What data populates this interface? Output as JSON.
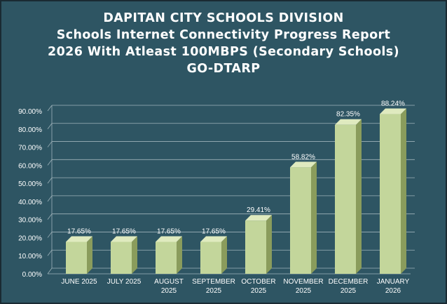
{
  "chart_data": {
    "type": "bar",
    "title_lines": [
      "DAPITAN CITY SCHOOLS DIVISION",
      "Schools Internet Connectivity Progress Report",
      "2026 With Atleast 100MBPS (Secondary Schools)",
      "GO-DTARP"
    ],
    "categories": [
      [
        "JUNE 2025"
      ],
      [
        "JULY 2025"
      ],
      [
        "AUGUST",
        "2025"
      ],
      [
        "SEPTEMBER",
        "2025"
      ],
      [
        "OCTOBER",
        "2025"
      ],
      [
        "NOVEMBER",
        "2025"
      ],
      [
        "DECEMBER",
        "2025"
      ],
      [
        "JANUARY",
        "2026"
      ]
    ],
    "values": [
      17.65,
      17.65,
      17.65,
      17.65,
      29.41,
      58.82,
      82.35,
      88.24
    ],
    "data_labels": [
      "17.65%",
      "17.65%",
      "17.65%",
      "17.65%",
      "29.41%",
      "58.82%",
      "82.35%",
      "88.24%"
    ],
    "y_ticks": [
      "0.00%",
      "10.00%",
      "20.00%",
      "30.00%",
      "40.00%",
      "50.00%",
      "60.00%",
      "70.00%",
      "80.00%",
      "90.00%"
    ],
    "ylim": [
      0,
      90
    ],
    "grid": true,
    "colors": {
      "background": "#2e5563",
      "bar_front": "#c3d69b",
      "bar_side": "#8a9c5c",
      "bar_top": "#dfeabf",
      "grid": "#9fb3ba",
      "text": "#ffffff"
    }
  }
}
